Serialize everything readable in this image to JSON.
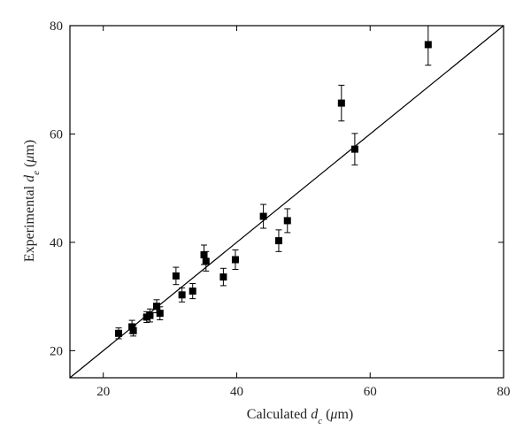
{
  "chart_data": {
    "type": "scatter",
    "title": "",
    "xlabel": {
      "prefix": "Calculated ",
      "var": "d",
      "sub": "c",
      "unit_open": " (",
      "mu": "μ",
      "unit_rest": "m)"
    },
    "ylabel": {
      "prefix": "Experimental ",
      "var": "d",
      "sub": "e",
      "unit_open": " (",
      "mu": "μ",
      "unit_rest": "m)"
    },
    "xlim": [
      15,
      80
    ],
    "ylim": [
      15,
      80
    ],
    "xticks": [
      20,
      40,
      60,
      80
    ],
    "yticks": [
      20,
      40,
      60,
      80
    ],
    "grid": false,
    "reference_line": {
      "type": "y=x"
    },
    "points": [
      {
        "x": 22.3,
        "y": 23.2,
        "err": 1.0
      },
      {
        "x": 24.3,
        "y": 24.4,
        "err": 1.2
      },
      {
        "x": 24.5,
        "y": 23.7,
        "err": 1.0
      },
      {
        "x": 26.5,
        "y": 26.2,
        "err": 1.0
      },
      {
        "x": 27.0,
        "y": 26.5,
        "err": 1.2
      },
      {
        "x": 28.0,
        "y": 28.2,
        "err": 1.2
      },
      {
        "x": 28.5,
        "y": 26.9,
        "err": 1.2
      },
      {
        "x": 30.9,
        "y": 33.8,
        "err": 1.6
      },
      {
        "x": 31.8,
        "y": 30.3,
        "err": 1.3
      },
      {
        "x": 33.4,
        "y": 31.0,
        "err": 1.4
      },
      {
        "x": 35.1,
        "y": 37.7,
        "err": 1.8
      },
      {
        "x": 35.4,
        "y": 36.5,
        "err": 1.8
      },
      {
        "x": 38.0,
        "y": 33.6,
        "err": 1.6
      },
      {
        "x": 39.8,
        "y": 36.8,
        "err": 1.8
      },
      {
        "x": 44.0,
        "y": 44.8,
        "err": 2.2
      },
      {
        "x": 46.3,
        "y": 40.3,
        "err": 2.0
      },
      {
        "x": 47.6,
        "y": 44.0,
        "err": 2.2
      },
      {
        "x": 55.7,
        "y": 65.7,
        "err": 3.3
      },
      {
        "x": 57.7,
        "y": 57.2,
        "err": 2.9
      },
      {
        "x": 68.7,
        "y": 76.5,
        "err": 3.8
      }
    ]
  }
}
